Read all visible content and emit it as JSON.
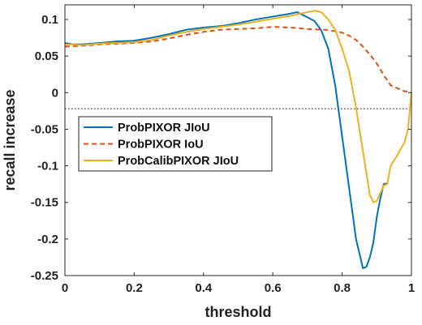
{
  "chart_data": {
    "type": "line",
    "title": "",
    "xlabel": "threshold",
    "ylabel": "recall increase",
    "xlim": [
      0,
      1
    ],
    "ylim": [
      -0.25,
      0.12
    ],
    "x_ticks": [
      0,
      0.2,
      0.4,
      0.6,
      0.8,
      1
    ],
    "x_tick_labels": [
      "0",
      "0.2",
      "0.4",
      "0.6",
      "0.8",
      "1"
    ],
    "y_ticks": [
      0.1,
      0.05,
      0,
      -0.05,
      -0.1,
      -0.15,
      -0.2,
      -0.25
    ],
    "y_tick_labels": [
      "0.1",
      "0.05",
      "0",
      "-0.05",
      "-0.1",
      "-0.15",
      "-0.2",
      "-0.25"
    ],
    "grid": false,
    "legend_position": "center-left",
    "reference_line": {
      "y": -0.022,
      "style": "dotted",
      "color": "#000000"
    },
    "series": [
      {
        "name": "ProbPIXOR JIoU",
        "color": "#0072BD",
        "dash": "solid",
        "points": [
          [
            0,
            0.068
          ],
          [
            0.02,
            0.066
          ],
          [
            0.05,
            0.066
          ],
          [
            0.1,
            0.068
          ],
          [
            0.15,
            0.07
          ],
          [
            0.2,
            0.071
          ],
          [
            0.25,
            0.075
          ],
          [
            0.3,
            0.08
          ],
          [
            0.35,
            0.086
          ],
          [
            0.4,
            0.089
          ],
          [
            0.45,
            0.091
          ],
          [
            0.5,
            0.095
          ],
          [
            0.55,
            0.1
          ],
          [
            0.6,
            0.104
          ],
          [
            0.65,
            0.108
          ],
          [
            0.67,
            0.11
          ],
          [
            0.7,
            0.103
          ],
          [
            0.72,
            0.098
          ],
          [
            0.74,
            0.085
          ],
          [
            0.76,
            0.06
          ],
          [
            0.78,
            0.01
          ],
          [
            0.8,
            -0.06
          ],
          [
            0.82,
            -0.13
          ],
          [
            0.84,
            -0.2
          ],
          [
            0.86,
            -0.24
          ],
          [
            0.87,
            -0.238
          ],
          [
            0.88,
            -0.225
          ],
          [
            0.89,
            -0.205
          ],
          [
            0.9,
            -0.17
          ],
          [
            0.91,
            -0.145
          ],
          [
            0.92,
            -0.125
          ],
          [
            0.93,
            -0.124
          ]
        ]
      },
      {
        "name": "ProbPIXOR IoU",
        "color": "#D95319",
        "dash": "dashed",
        "points": [
          [
            0,
            0.063
          ],
          [
            0.05,
            0.064
          ],
          [
            0.1,
            0.066
          ],
          [
            0.15,
            0.067
          ],
          [
            0.2,
            0.068
          ],
          [
            0.25,
            0.07
          ],
          [
            0.3,
            0.074
          ],
          [
            0.35,
            0.079
          ],
          [
            0.4,
            0.083
          ],
          [
            0.45,
            0.086
          ],
          [
            0.5,
            0.087
          ],
          [
            0.55,
            0.088
          ],
          [
            0.6,
            0.09
          ],
          [
            0.65,
            0.089
          ],
          [
            0.7,
            0.087
          ],
          [
            0.75,
            0.086
          ],
          [
            0.78,
            0.084
          ],
          [
            0.8,
            0.082
          ],
          [
            0.82,
            0.078
          ],
          [
            0.84,
            0.072
          ],
          [
            0.86,
            0.063
          ],
          [
            0.88,
            0.052
          ],
          [
            0.9,
            0.04
          ],
          [
            0.92,
            0.024
          ],
          [
            0.94,
            0.01
          ],
          [
            0.96,
            0.006
          ],
          [
            0.98,
            0.002
          ],
          [
            1,
            0.001
          ]
        ]
      },
      {
        "name": "ProbCalibPIXOR JIoU",
        "color": "#EDB120",
        "dash": "solid",
        "points": [
          [
            0,
            0.066
          ],
          [
            0.05,
            0.065
          ],
          [
            0.1,
            0.067
          ],
          [
            0.15,
            0.068
          ],
          [
            0.2,
            0.069
          ],
          [
            0.25,
            0.072
          ],
          [
            0.3,
            0.078
          ],
          [
            0.35,
            0.083
          ],
          [
            0.4,
            0.087
          ],
          [
            0.45,
            0.09
          ],
          [
            0.5,
            0.093
          ],
          [
            0.55,
            0.097
          ],
          [
            0.6,
            0.101
          ],
          [
            0.65,
            0.105
          ],
          [
            0.68,
            0.108
          ],
          [
            0.7,
            0.11
          ],
          [
            0.72,
            0.112
          ],
          [
            0.74,
            0.11
          ],
          [
            0.76,
            0.1
          ],
          [
            0.78,
            0.086
          ],
          [
            0.8,
            0.06
          ],
          [
            0.82,
            0.03
          ],
          [
            0.84,
            -0.02
          ],
          [
            0.86,
            -0.08
          ],
          [
            0.88,
            -0.14
          ],
          [
            0.89,
            -0.15
          ],
          [
            0.9,
            -0.148
          ],
          [
            0.92,
            -0.127
          ],
          [
            0.93,
            -0.125
          ],
          [
            0.94,
            -0.1
          ],
          [
            0.96,
            -0.085
          ],
          [
            0.98,
            -0.068
          ],
          [
            0.99,
            -0.05
          ],
          [
            1,
            0
          ]
        ]
      }
    ]
  }
}
